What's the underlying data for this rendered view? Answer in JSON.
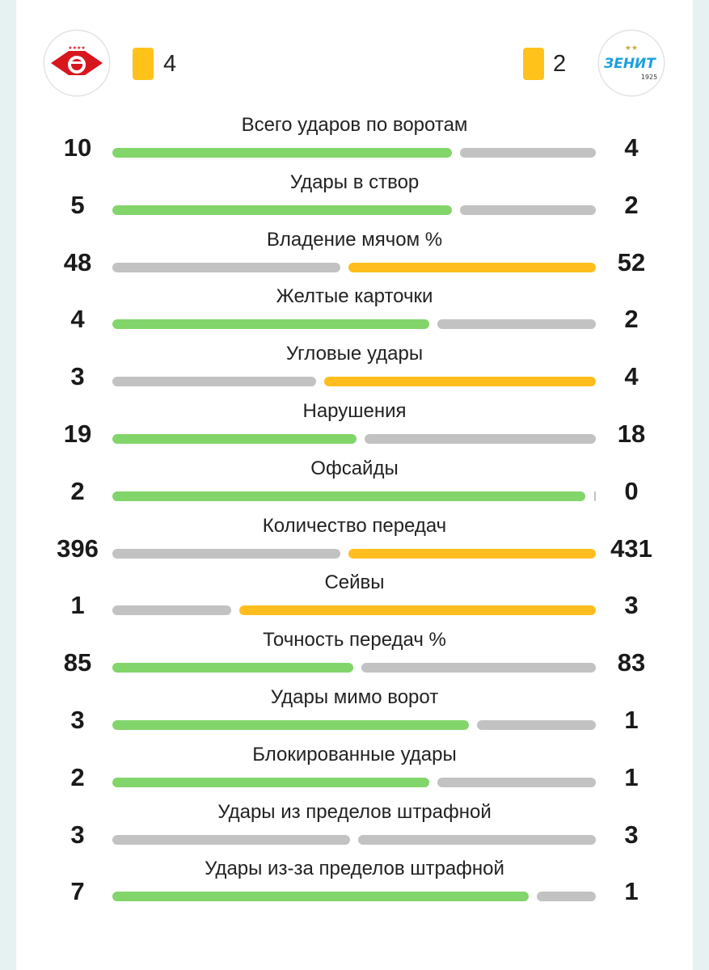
{
  "colors": {
    "winner_green": "#82d56a",
    "winner_yellow": "#ffbe1e",
    "neutral_grey": "#c2c2c2",
    "yellow_card": "#ffc21a"
  },
  "home": {
    "logo": "spartak-logo",
    "logo_text": "★★★★",
    "yellow_cards": "4"
  },
  "away": {
    "logo": "zenit-logo",
    "logo_text": "ЗЕНИТ",
    "logo_year": "1925",
    "logo_stars": "★★",
    "yellow_cards": "2"
  },
  "stats": [
    {
      "label": "Всего ударов по воротам",
      "home": "10",
      "away": "4",
      "home_value": 10,
      "away_value": 4
    },
    {
      "label": "Удары в створ",
      "home": "5",
      "away": "2",
      "home_value": 5,
      "away_value": 2
    },
    {
      "label": "Владение мячом %",
      "home": "48",
      "away": "52",
      "home_value": 48,
      "away_value": 52
    },
    {
      "label": "Желтые карточки",
      "home": "4",
      "away": "2",
      "home_value": 4,
      "away_value": 2
    },
    {
      "label": "Угловые удары",
      "home": "3",
      "away": "4",
      "home_value": 3,
      "away_value": 4
    },
    {
      "label": "Нарушения",
      "home": "19",
      "away": "18",
      "home_value": 19,
      "away_value": 18
    },
    {
      "label": "Офсайды",
      "home": "2",
      "away": "0",
      "home_value": 2,
      "away_value": 0
    },
    {
      "label": "Количество передач",
      "home": "396",
      "away": "431",
      "home_value": 396,
      "away_value": 431
    },
    {
      "label": "Сейвы",
      "home": "1",
      "away": "3",
      "home_value": 1,
      "away_value": 3
    },
    {
      "label": "Точность передач %",
      "home": "85",
      "away": "83",
      "home_value": 85,
      "away_value": 83
    },
    {
      "label": "Удары мимо ворот",
      "home": "3",
      "away": "1",
      "home_value": 3,
      "away_value": 1
    },
    {
      "label": "Блокированные удары",
      "home": "2",
      "away": "1",
      "home_value": 2,
      "away_value": 1
    },
    {
      "label": "Удары из пределов штрафной",
      "home": "3",
      "away": "3",
      "home_value": 3,
      "away_value": 3
    },
    {
      "label": "Удары из-за пределов штрафной",
      "home": "7",
      "away": "1",
      "home_value": 7,
      "away_value": 1
    }
  ]
}
